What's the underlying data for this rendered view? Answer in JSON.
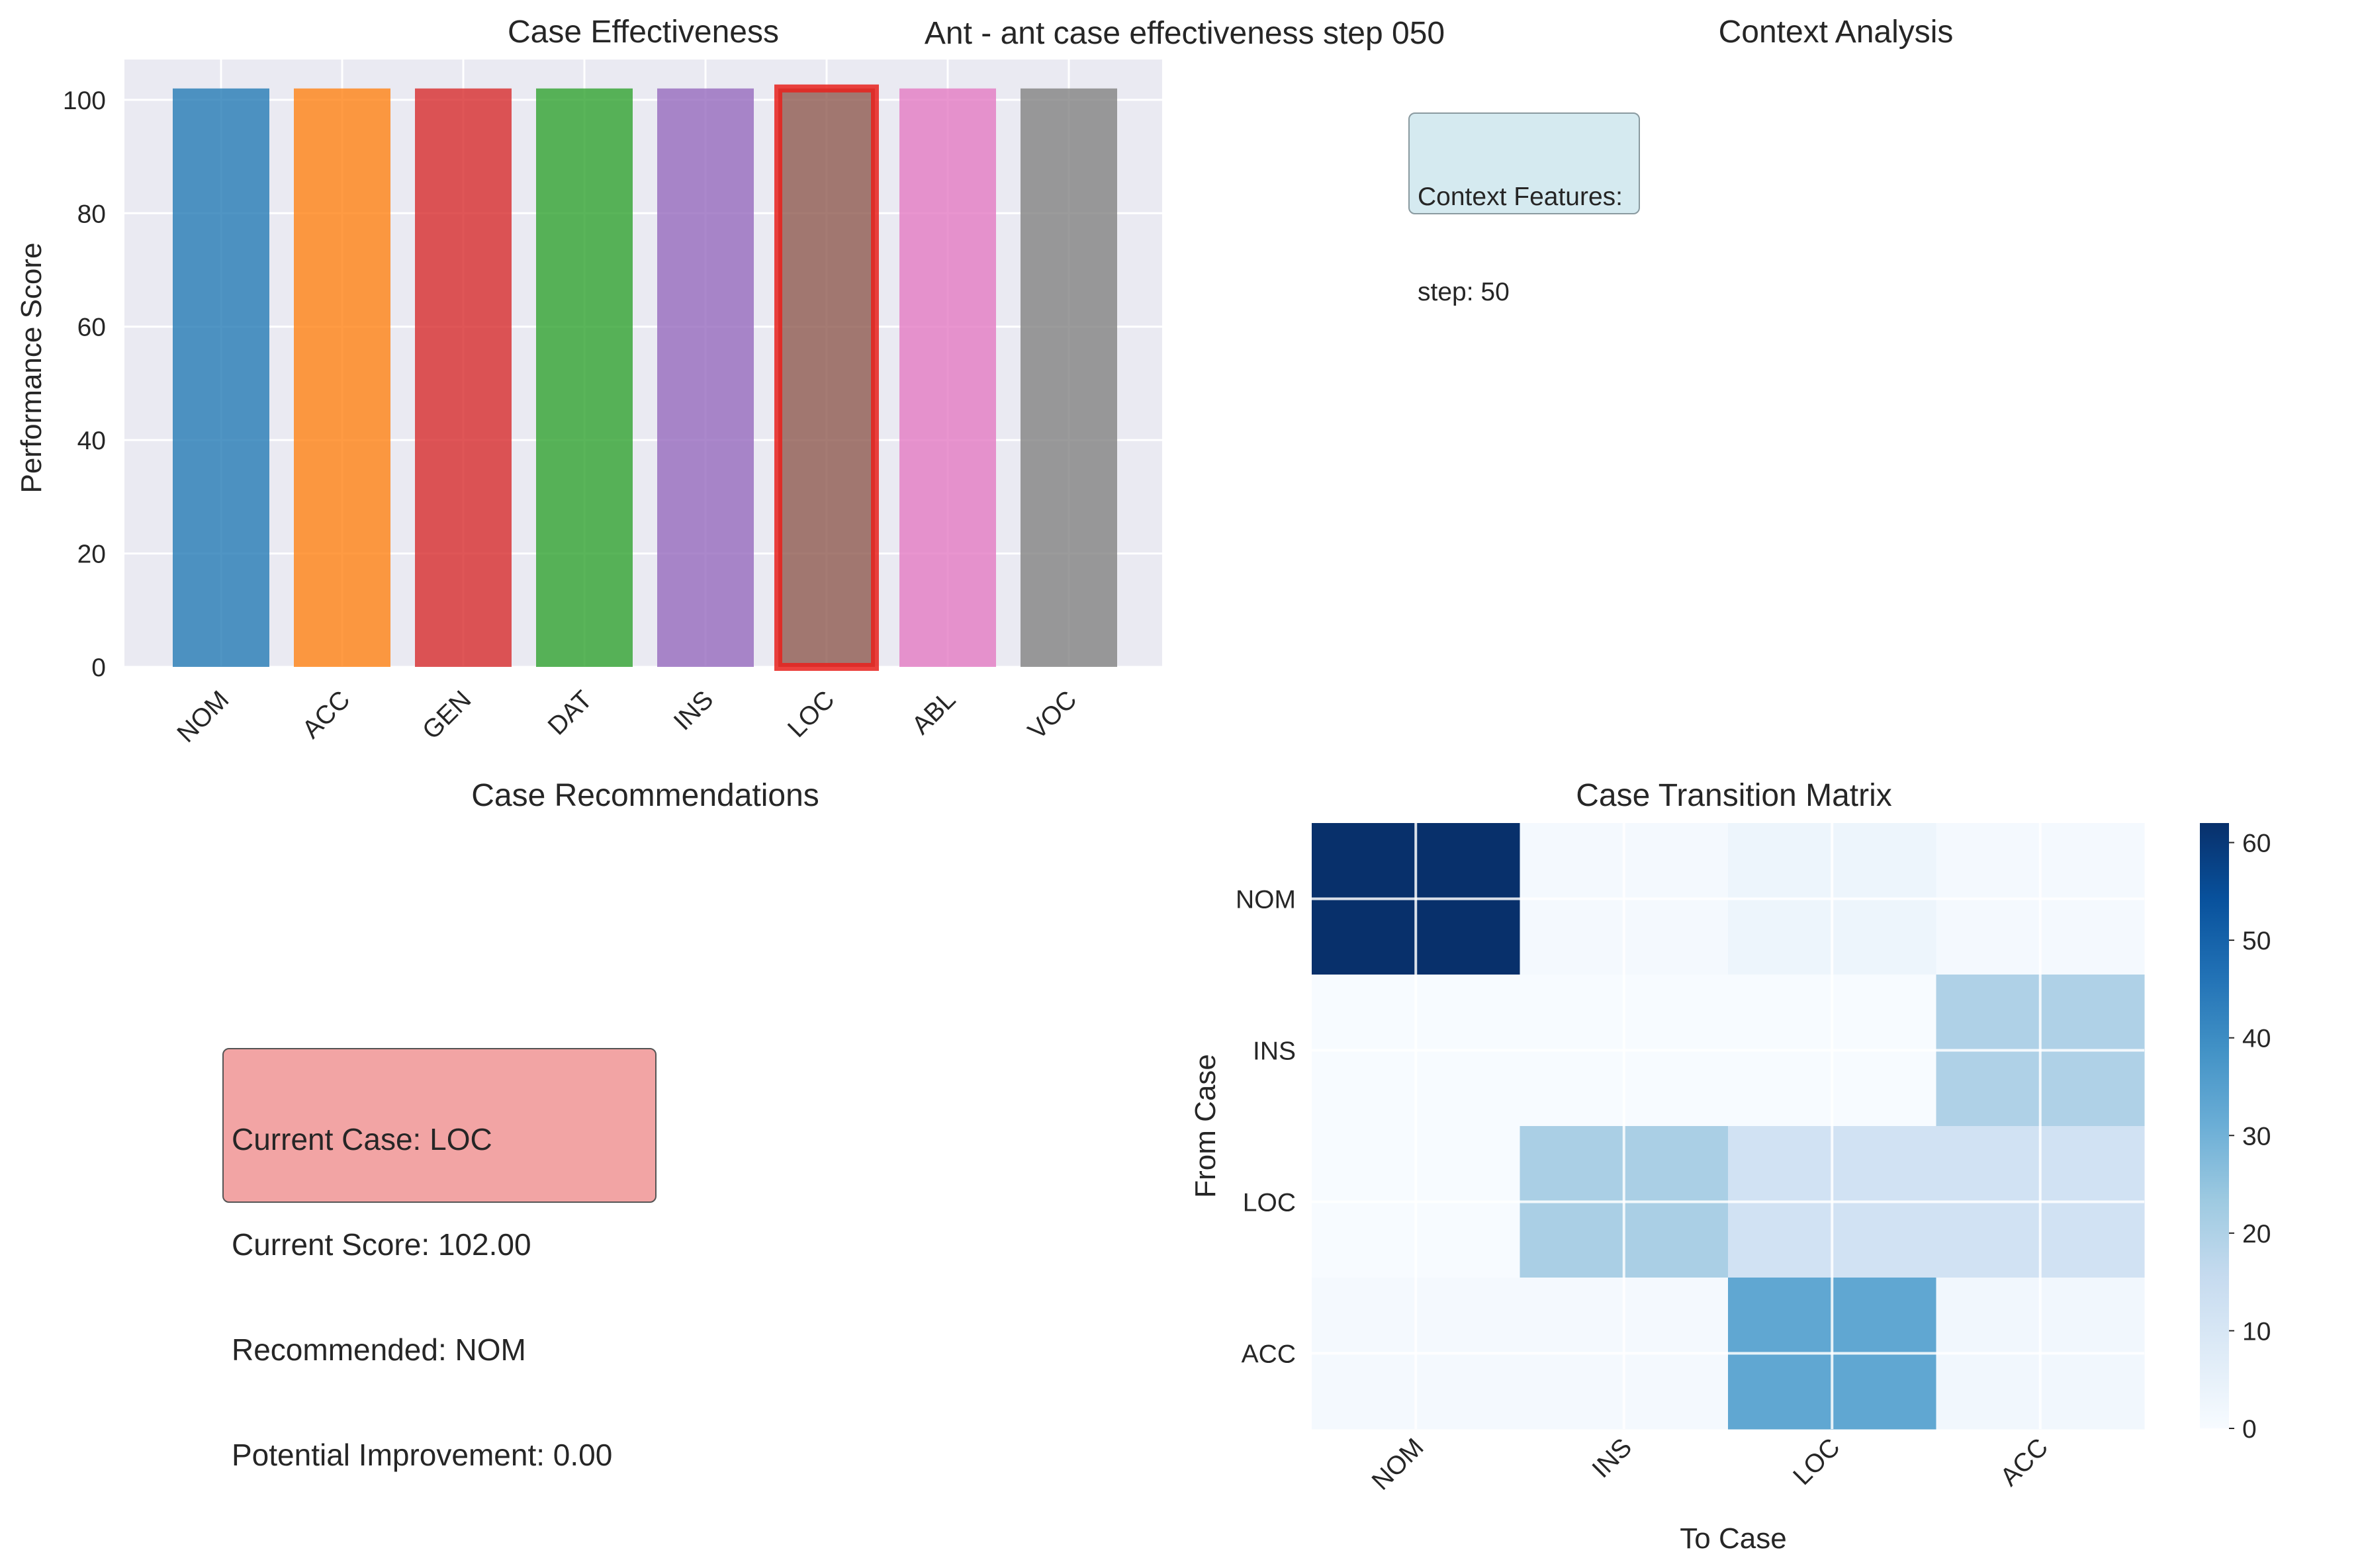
{
  "suptitle": "Ant - ant case effectiveness step 050",
  "panels": {
    "effectiveness": {
      "title": "Case Effectiveness",
      "ylabel": "Performance Score"
    },
    "context": {
      "title": "Context Analysis",
      "box_lines": [
        "Context Features:",
        "step: 50"
      ]
    },
    "recommendations": {
      "title": "Case Recommendations",
      "box_lines": [
        "Current Case: LOC",
        "Current Score: 102.00",
        "Recommended: NOM",
        "Potential Improvement: 0.00"
      ]
    },
    "transition": {
      "title": "Case Transition Matrix",
      "xlabel": "To Case",
      "ylabel": "From Case"
    }
  },
  "chart_data": [
    {
      "type": "bar",
      "title": "Case Effectiveness",
      "xlabel": "",
      "ylabel": "Performance Score",
      "categories": [
        "NOM",
        "ACC",
        "GEN",
        "DAT",
        "INS",
        "LOC",
        "ABL",
        "VOC"
      ],
      "values": [
        102,
        102,
        102,
        102,
        102,
        102,
        102,
        102
      ],
      "colors": [
        "#1f77b4",
        "#ff7f0e",
        "#d62728",
        "#2ca02c",
        "#9467bd",
        "#8c564b",
        "#e377c2",
        "#7f7f7f"
      ],
      "highlighted": "LOC",
      "highlight_color": "#e8211c",
      "ylim": [
        0,
        107.1
      ],
      "yticks": [
        0,
        20,
        40,
        60,
        80,
        100
      ],
      "grid": true,
      "background": "#eaeaf2"
    },
    {
      "type": "heatmap",
      "title": "Case Transition Matrix",
      "xlabel": "To Case",
      "ylabel": "From Case",
      "x_categories": [
        "NOM",
        "INS",
        "LOC",
        "ACC"
      ],
      "y_categories": [
        "NOM",
        "INS",
        "LOC",
        "ACC"
      ],
      "values": [
        [
          62,
          1,
          3,
          1
        ],
        [
          0,
          0,
          0,
          20
        ],
        [
          0,
          21,
          12,
          12
        ],
        [
          1,
          1,
          33,
          2
        ]
      ],
      "colormap": "Blues",
      "colorbar_range": [
        0,
        62
      ],
      "colorbar_ticks": [
        0,
        10,
        20,
        30,
        40,
        50,
        60
      ]
    }
  ]
}
